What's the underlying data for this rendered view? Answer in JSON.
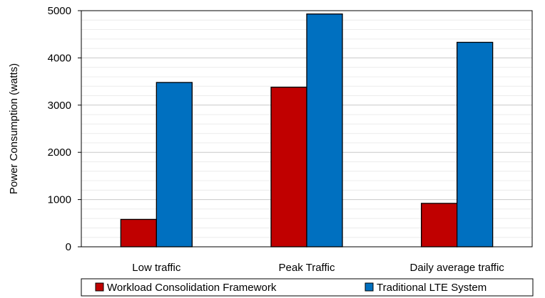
{
  "chart_data": {
    "type": "bar",
    "categories": [
      "Low traffic",
      "Peak Traffic",
      "Daily average traffic"
    ],
    "series": [
      {
        "name": "Workload Consolidation Framework",
        "values": [
          580,
          3380,
          920
        ],
        "color": "#c00000"
      },
      {
        "name": "Traditional LTE System",
        "values": [
          3480,
          4930,
          4330
        ],
        "color": "#0070c0"
      }
    ],
    "ylabel": "Power Consumption (watts)",
    "ylim": [
      0,
      5000
    ],
    "yticks": [
      0,
      1000,
      2000,
      3000,
      4000,
      5000
    ],
    "grid": true,
    "legend_position": "bottom"
  }
}
